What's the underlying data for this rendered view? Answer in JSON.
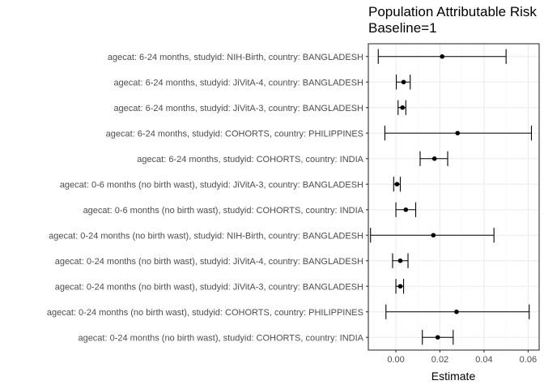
{
  "chart_data": {
    "type": "errorbar",
    "title": "Population Attributable Risk",
    "subtitle": "Baseline=1",
    "xlabel": "Estimate",
    "ylabel": "",
    "xlim": [
      -0.0125,
      0.065
    ],
    "xticks": [
      0.0,
      0.02,
      0.04,
      0.06
    ],
    "xtick_labels": [
      "0.00",
      "0.02",
      "0.04",
      "0.06"
    ],
    "grid": true,
    "theme_colors": {
      "panel_border": "#333333",
      "grid_major": "#ebebeb",
      "grid_minor": "#f5f5f5",
      "point": "#000000"
    },
    "categories": [
      "agecat: 6-24 months, studyid: NIH-Birth, country: BANGLADESH",
      "agecat: 6-24 months, studyid: JiVitA-4, country: BANGLADESH",
      "agecat: 6-24 months, studyid: JiVitA-3, country: BANGLADESH",
      "agecat: 6-24 months, studyid: COHORTS, country: PHILIPPINES",
      "agecat: 6-24 months, studyid: COHORTS, country: INDIA",
      "agecat: 0-6 months (no birth wast), studyid: JiVitA-3, country: BANGLADESH",
      "agecat: 0-6 months (no birth wast), studyid: COHORTS, country: INDIA",
      "agecat: 0-24 months (no birth wast), studyid: NIH-Birth, country: BANGLADESH",
      "agecat: 0-24 months (no birth wast), studyid: JiVitA-4, country: BANGLADESH",
      "agecat: 0-24 months (no birth wast), studyid: JiVitA-3, country: BANGLADESH",
      "agecat: 0-24 months (no birth wast), studyid: COHORTS, country: PHILIPPINES",
      "agecat: 0-24 months (no birth wast), studyid: COHORTS, country: INDIA"
    ],
    "estimate": [
      0.021,
      0.0035,
      0.003,
      0.028,
      0.0175,
      0.0005,
      0.0045,
      0.017,
      0.002,
      0.002,
      0.0275,
      0.019
    ],
    "lower": [
      -0.008,
      0.0002,
      0.001,
      -0.005,
      0.011,
      -0.001,
      0.0,
      -0.0115,
      -0.0015,
      0.0,
      -0.0045,
      0.012
    ],
    "upper": [
      0.05,
      0.0065,
      0.0045,
      0.0615,
      0.0235,
      0.002,
      0.009,
      0.0445,
      0.0055,
      0.0035,
      0.0605,
      0.026
    ]
  }
}
